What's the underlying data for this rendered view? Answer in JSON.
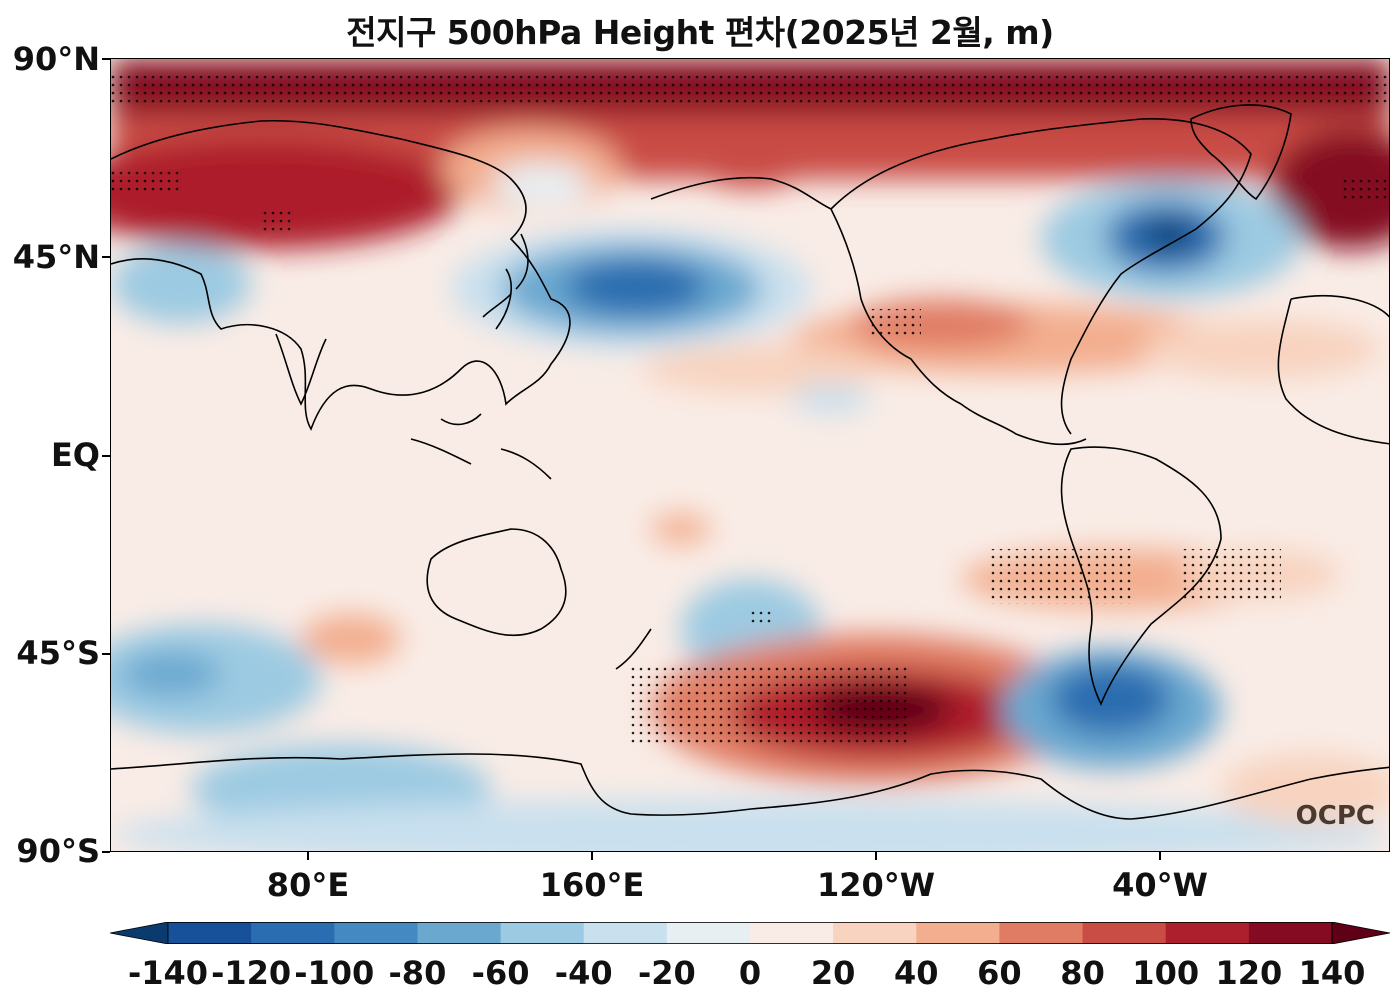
{
  "title": "전지구 500hPa Height 편차(2025년 2월, m)",
  "y_axis": {
    "labels": [
      "90°N",
      "45°N",
      "EQ",
      "45°S",
      "90°S"
    ]
  },
  "x_axis": {
    "labels": [
      "80°E",
      "160°E",
      "120°W",
      "40°W"
    ]
  },
  "colorbar": {
    "labels": [
      "-140",
      "-120",
      "-100",
      "-80",
      "-60",
      "-40",
      "-20",
      "0",
      "20",
      "40",
      "60",
      "80",
      "100",
      "120",
      "140"
    ],
    "colors": [
      "#0b3a6e",
      "#17519a",
      "#2a6db0",
      "#4489c1",
      "#6aa8d0",
      "#9ccae2",
      "#c9e0ee",
      "#e8eff3",
      "#f9ece6",
      "#f8d3bf",
      "#f3ae8f",
      "#e07b64",
      "#c94c45",
      "#ad1f2c",
      "#850b22",
      "#5f0016"
    ]
  },
  "logo": "OCPC"
}
